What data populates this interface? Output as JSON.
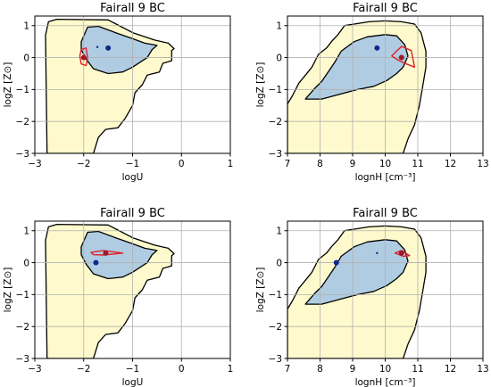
{
  "chart_data": [
    {
      "type": "contour",
      "title": "Fairall 9 BC",
      "xlabel": "logU",
      "ylabel": "logZ [Z⊙]",
      "xlim": [
        -3,
        1
      ],
      "ylim": [
        -3,
        1.3
      ],
      "xticks": [
        "-3",
        "-2",
        "-1",
        "0",
        "1"
      ],
      "yticks": [
        "-3",
        "-2",
        "-1",
        "0",
        "1"
      ],
      "grid": true,
      "regions": [
        {
          "level": "outer",
          "color": "#fffacd",
          "points": [
            [
              -2.75,
              -3
            ],
            [
              -2.78,
              0.7
            ],
            [
              -2.72,
              1.12
            ],
            [
              -2.55,
              1.2
            ],
            [
              -1.5,
              1.18
            ],
            [
              -1.3,
              1.02
            ],
            [
              -1.0,
              0.78
            ],
            [
              -0.55,
              0.55
            ],
            [
              -0.27,
              0.45
            ],
            [
              -0.15,
              0.28
            ],
            [
              -0.2,
              0.22
            ],
            [
              -0.2,
              -0.1
            ],
            [
              -0.38,
              -0.18
            ],
            [
              -0.45,
              -0.45
            ],
            [
              -0.7,
              -0.55
            ],
            [
              -0.8,
              -0.85
            ],
            [
              -0.95,
              -1.1
            ],
            [
              -1.0,
              -1.5
            ],
            [
              -1.15,
              -1.9
            ],
            [
              -1.3,
              -2.2
            ],
            [
              -1.55,
              -2.25
            ],
            [
              -1.7,
              -2.5
            ],
            [
              -1.8,
              -3.0
            ]
          ]
        },
        {
          "level": "inner",
          "color": "#b0cce2",
          "points": [
            [
              -2.05,
              0.5
            ],
            [
              -1.92,
              0.95
            ],
            [
              -1.7,
              0.98
            ],
            [
              -1.35,
              0.78
            ],
            [
              -1.05,
              0.62
            ],
            [
              -0.75,
              0.45
            ],
            [
              -0.5,
              0.38
            ],
            [
              -0.6,
              0.25
            ],
            [
              -0.7,
              0.0
            ],
            [
              -0.85,
              -0.15
            ],
            [
              -1.0,
              -0.3
            ],
            [
              -1.2,
              -0.45
            ],
            [
              -1.5,
              -0.5
            ],
            [
              -1.8,
              -0.35
            ],
            [
              -1.95,
              -0.05
            ],
            [
              -2.05,
              0.25
            ]
          ]
        }
      ],
      "highlight": {
        "color": "#e0202a",
        "points": [
          [
            -2.05,
            0.25
          ],
          [
            -1.95,
            0.3
          ],
          [
            -1.92,
            0.0
          ],
          [
            -1.95,
            -0.25
          ],
          [
            -2.05,
            -0.2
          ],
          [
            -2.08,
            0.05
          ]
        ]
      },
      "points": [
        {
          "x": -1.5,
          "y": 0.3,
          "color": "#0a2a8c",
          "r": 3
        },
        {
          "x": -1.72,
          "y": 0.33,
          "color": "#0a2a8c",
          "r": 1.2
        },
        {
          "x": -2.0,
          "y": 0.0,
          "color": "#9a1a28",
          "r": 3
        }
      ]
    },
    {
      "type": "contour",
      "title": "Fairall 9 BC",
      "xlabel": "lognH [cm⁻³]",
      "ylabel": "logZ [Z⊙]",
      "xlim": [
        7,
        13
      ],
      "ylim": [
        -3,
        1.3
      ],
      "xticks": [
        "7",
        "8",
        "9",
        "10",
        "11",
        "12",
        "13"
      ],
      "yticks": [
        "-3",
        "-2",
        "-1",
        "0",
        "1"
      ],
      "grid": true,
      "regions": [
        {
          "level": "outer",
          "color": "#fffacd",
          "points": [
            [
              7.0,
              -1.45
            ],
            [
              7.15,
              -1.2
            ],
            [
              7.35,
              -0.8
            ],
            [
              7.55,
              -0.55
            ],
            [
              7.75,
              -0.3
            ],
            [
              7.95,
              0.1
            ],
            [
              8.2,
              0.3
            ],
            [
              8.35,
              0.5
            ],
            [
              8.55,
              0.72
            ],
            [
              8.75,
              1.0
            ],
            [
              9.05,
              1.05
            ],
            [
              9.5,
              1.12
            ],
            [
              10.0,
              1.15
            ],
            [
              10.5,
              1.12
            ],
            [
              10.9,
              1.05
            ],
            [
              11.1,
              0.78
            ],
            [
              11.25,
              0.2
            ],
            [
              11.25,
              -0.3
            ],
            [
              11.15,
              -0.9
            ],
            [
              11.05,
              -1.5
            ],
            [
              10.9,
              -2.1
            ],
            [
              10.7,
              -2.55
            ],
            [
              10.55,
              -3.0
            ],
            [
              7.0,
              -3.0
            ]
          ]
        },
        {
          "level": "inner",
          "color": "#b0cce2",
          "points": [
            [
              7.55,
              -1.3
            ],
            [
              7.85,
              -0.95
            ],
            [
              8.05,
              -0.75
            ],
            [
              8.25,
              -0.45
            ],
            [
              8.45,
              -0.15
            ],
            [
              8.65,
              0.2
            ],
            [
              8.85,
              0.35
            ],
            [
              9.05,
              0.5
            ],
            [
              9.45,
              0.65
            ],
            [
              10.0,
              0.72
            ],
            [
              10.35,
              0.68
            ],
            [
              10.6,
              0.4
            ],
            [
              10.7,
              0.05
            ],
            [
              10.55,
              -0.3
            ],
            [
              10.35,
              -0.5
            ],
            [
              10.05,
              -0.72
            ],
            [
              9.65,
              -0.9
            ],
            [
              9.15,
              -1.0
            ],
            [
              8.6,
              -1.15
            ],
            [
              8.05,
              -1.3
            ]
          ]
        }
      ],
      "highlight": {
        "color": "#e0202a",
        "points": [
          [
            10.2,
            0.05
          ],
          [
            10.5,
            0.35
          ],
          [
            10.8,
            0.22
          ],
          [
            10.9,
            -0.3
          ],
          [
            10.65,
            -0.2
          ],
          [
            10.4,
            -0.08
          ]
        ]
      },
      "points": [
        {
          "x": 9.75,
          "y": 0.3,
          "color": "#0a2a8c",
          "r": 3
        },
        {
          "x": 10.5,
          "y": 0.0,
          "color": "#9a1a28",
          "r": 3
        }
      ]
    },
    {
      "type": "contour",
      "title": "Fairall 9 BC",
      "xlabel": "logU",
      "ylabel": "logZ [Z⊙]",
      "xlim": [
        -3,
        1
      ],
      "ylim": [
        -3,
        1.3
      ],
      "xticks": [
        "-3",
        "-2",
        "-1",
        "0",
        "1"
      ],
      "yticks": [
        "-3",
        "-2",
        "-1",
        "0",
        "1"
      ],
      "grid": true,
      "regions": [
        {
          "level": "outer",
          "color": "#fffacd",
          "points": [
            [
              -2.75,
              -3
            ],
            [
              -2.78,
              0.7
            ],
            [
              -2.72,
              1.12
            ],
            [
              -2.55,
              1.2
            ],
            [
              -1.5,
              1.18
            ],
            [
              -1.3,
              1.02
            ],
            [
              -1.0,
              0.78
            ],
            [
              -0.55,
              0.55
            ],
            [
              -0.27,
              0.45
            ],
            [
              -0.15,
              0.28
            ],
            [
              -0.2,
              0.22
            ],
            [
              -0.2,
              -0.1
            ],
            [
              -0.38,
              -0.18
            ],
            [
              -0.45,
              -0.45
            ],
            [
              -0.7,
              -0.55
            ],
            [
              -0.8,
              -0.85
            ],
            [
              -0.95,
              -1.1
            ],
            [
              -1.0,
              -1.5
            ],
            [
              -1.15,
              -1.9
            ],
            [
              -1.3,
              -2.2
            ],
            [
              -1.55,
              -2.25
            ],
            [
              -1.7,
              -2.5
            ],
            [
              -1.8,
              -3.0
            ]
          ]
        },
        {
          "level": "inner",
          "color": "#b0cce2",
          "points": [
            [
              -2.05,
              0.5
            ],
            [
              -1.92,
              0.95
            ],
            [
              -1.7,
              0.98
            ],
            [
              -1.35,
              0.78
            ],
            [
              -1.05,
              0.62
            ],
            [
              -0.75,
              0.45
            ],
            [
              -0.5,
              0.38
            ],
            [
              -0.6,
              0.25
            ],
            [
              -0.7,
              0.0
            ],
            [
              -0.85,
              -0.15
            ],
            [
              -1.0,
              -0.3
            ],
            [
              -1.2,
              -0.45
            ],
            [
              -1.5,
              -0.5
            ],
            [
              -1.8,
              -0.35
            ],
            [
              -1.95,
              -0.05
            ],
            [
              -2.05,
              0.25
            ]
          ]
        }
      ],
      "highlight": {
        "color": "#e0202a",
        "points": [
          [
            -1.85,
            0.32
          ],
          [
            -1.6,
            0.38
          ],
          [
            -1.2,
            0.3
          ],
          [
            -1.6,
            0.24
          ],
          [
            -1.8,
            0.25
          ]
        ]
      },
      "points": [
        {
          "x": -1.55,
          "y": 0.3,
          "color": "#9a1a28",
          "r": 3
        },
        {
          "x": -1.75,
          "y": 0.0,
          "color": "#0a2a8c",
          "r": 3
        }
      ]
    },
    {
      "type": "contour",
      "title": "Fairall 9 BC",
      "xlabel": "lognH [cm⁻³]",
      "ylabel": "logZ [Z⊙]",
      "xlim": [
        7,
        13
      ],
      "ylim": [
        -3,
        1.3
      ],
      "xticks": [
        "7",
        "8",
        "9",
        "10",
        "11",
        "12",
        "13"
      ],
      "yticks": [
        "-3",
        "-2",
        "-1",
        "0",
        "1"
      ],
      "grid": true,
      "regions": [
        {
          "level": "outer",
          "color": "#fffacd",
          "points": [
            [
              7.0,
              -1.45
            ],
            [
              7.15,
              -1.2
            ],
            [
              7.35,
              -0.8
            ],
            [
              7.55,
              -0.55
            ],
            [
              7.75,
              -0.3
            ],
            [
              7.95,
              0.1
            ],
            [
              8.2,
              0.3
            ],
            [
              8.35,
              0.5
            ],
            [
              8.55,
              0.72
            ],
            [
              8.75,
              1.0
            ],
            [
              9.05,
              1.05
            ],
            [
              9.5,
              1.12
            ],
            [
              10.0,
              1.15
            ],
            [
              10.5,
              1.12
            ],
            [
              10.9,
              1.05
            ],
            [
              11.1,
              0.78
            ],
            [
              11.25,
              0.2
            ],
            [
              11.25,
              -0.3
            ],
            [
              11.15,
              -0.9
            ],
            [
              11.05,
              -1.5
            ],
            [
              10.9,
              -2.1
            ],
            [
              10.7,
              -2.55
            ],
            [
              10.55,
              -3.0
            ],
            [
              7.0,
              -3.0
            ]
          ]
        },
        {
          "level": "inner",
          "color": "#b0cce2",
          "points": [
            [
              7.55,
              -1.3
            ],
            [
              7.85,
              -0.95
            ],
            [
              8.05,
              -0.75
            ],
            [
              8.25,
              -0.45
            ],
            [
              8.45,
              -0.15
            ],
            [
              8.65,
              0.2
            ],
            [
              8.85,
              0.35
            ],
            [
              9.05,
              0.5
            ],
            [
              9.45,
              0.65
            ],
            [
              10.0,
              0.72
            ],
            [
              10.35,
              0.68
            ],
            [
              10.6,
              0.4
            ],
            [
              10.7,
              0.05
            ],
            [
              10.55,
              -0.3
            ],
            [
              10.35,
              -0.5
            ],
            [
              10.05,
              -0.72
            ],
            [
              9.65,
              -0.9
            ],
            [
              9.15,
              -1.0
            ],
            [
              8.6,
              -1.15
            ],
            [
              8.05,
              -1.3
            ]
          ]
        }
      ],
      "highlight": {
        "color": "#e0202a",
        "points": [
          [
            10.3,
            0.3
          ],
          [
            10.5,
            0.38
          ],
          [
            10.75,
            0.22
          ],
          [
            10.55,
            0.2
          ]
        ]
      },
      "points": [
        {
          "x": 8.5,
          "y": 0.0,
          "color": "#0a2a8c",
          "r": 3
        },
        {
          "x": 9.75,
          "y": 0.3,
          "color": "#0a2a8c",
          "r": 1.2
        },
        {
          "x": 10.5,
          "y": 0.3,
          "color": "#9a1a28",
          "r": 3
        }
      ]
    }
  ]
}
